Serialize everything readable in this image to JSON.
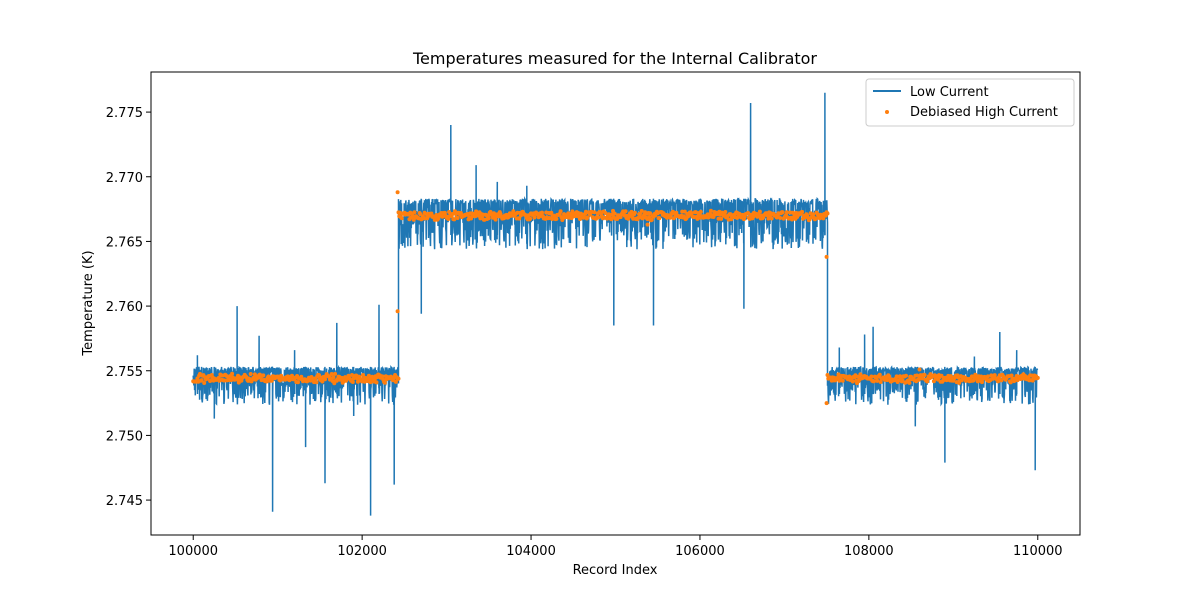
{
  "chart_data": {
    "type": "line",
    "title": "Temperatures measured for the Internal Calibrator",
    "xlabel": "Record Index",
    "ylabel": "Temperature (K)",
    "xlim": [
      99500,
      110500
    ],
    "ylim": [
      2.7423,
      2.7781
    ],
    "x_ticks": [
      100000,
      102000,
      104000,
      106000,
      108000,
      110000
    ],
    "x_tick_labels": [
      "100000",
      "102000",
      "104000",
      "106000",
      "108000",
      "110000"
    ],
    "y_ticks": [
      2.745,
      2.75,
      2.755,
      2.76,
      2.765,
      2.77,
      2.775
    ],
    "y_tick_labels": [
      "2.745",
      "2.750",
      "2.755",
      "2.760",
      "2.765",
      "2.770",
      "2.775"
    ],
    "grid": false,
    "legend_position": "top-right",
    "segments": [
      {
        "x_start": 100000,
        "x_end": 102430,
        "low_band": [
          2.7532,
          2.7553
        ],
        "high_level": 2.7544
      },
      {
        "x_start": 102430,
        "x_end": 107510,
        "low_band": [
          2.7655,
          2.7683
        ],
        "high_level": 2.767
      },
      {
        "x_start": 107510,
        "x_end": 110000,
        "low_band": [
          2.7532,
          2.7553
        ],
        "high_level": 2.7544
      }
    ],
    "low_current_spikes": [
      {
        "x": 100050,
        "y": 2.7562
      },
      {
        "x": 100100,
        "y": 2.7528
      },
      {
        "x": 100250,
        "y": 2.7513
      },
      {
        "x": 100520,
        "y": 2.76
      },
      {
        "x": 100780,
        "y": 2.7577
      },
      {
        "x": 100940,
        "y": 2.7441
      },
      {
        "x": 101200,
        "y": 2.7566
      },
      {
        "x": 101330,
        "y": 2.7491
      },
      {
        "x": 101560,
        "y": 2.7463
      },
      {
        "x": 101700,
        "y": 2.7587
      },
      {
        "x": 101900,
        "y": 2.7515
      },
      {
        "x": 102100,
        "y": 2.7438
      },
      {
        "x": 102200,
        "y": 2.7601
      },
      {
        "x": 102380,
        "y": 2.7462
      },
      {
        "x": 102700,
        "y": 2.7594
      },
      {
        "x": 103050,
        "y": 2.774
      },
      {
        "x": 103350,
        "y": 2.7709
      },
      {
        "x": 103600,
        "y": 2.7696
      },
      {
        "x": 103950,
        "y": 2.7693
      },
      {
        "x": 104980,
        "y": 2.7585
      },
      {
        "x": 105450,
        "y": 2.7585
      },
      {
        "x": 106520,
        "y": 2.7598
      },
      {
        "x": 106600,
        "y": 2.7757
      },
      {
        "x": 107480,
        "y": 2.7765
      },
      {
        "x": 107650,
        "y": 2.7568
      },
      {
        "x": 107950,
        "y": 2.7578
      },
      {
        "x": 108050,
        "y": 2.7584
      },
      {
        "x": 108550,
        "y": 2.7507
      },
      {
        "x": 108900,
        "y": 2.7479
      },
      {
        "x": 109250,
        "y": 2.7561
      },
      {
        "x": 109550,
        "y": 2.758
      },
      {
        "x": 109750,
        "y": 2.7566
      },
      {
        "x": 109970,
        "y": 2.7473
      }
    ],
    "high_current_outliers": [
      {
        "x": 102420,
        "y": 2.7596
      },
      {
        "x": 102420,
        "y": 2.7688
      },
      {
        "x": 105380,
        "y": 2.7663
      },
      {
        "x": 107500,
        "y": 2.7638
      },
      {
        "x": 107500,
        "y": 2.7525
      },
      {
        "x": 108600,
        "y": 2.7551
      }
    ],
    "series": [
      {
        "name": "Low Current",
        "color": "#1f77b4",
        "style": "line"
      },
      {
        "name": "Debiased High Current",
        "color": "#ff7f0e",
        "style": "points"
      }
    ]
  }
}
